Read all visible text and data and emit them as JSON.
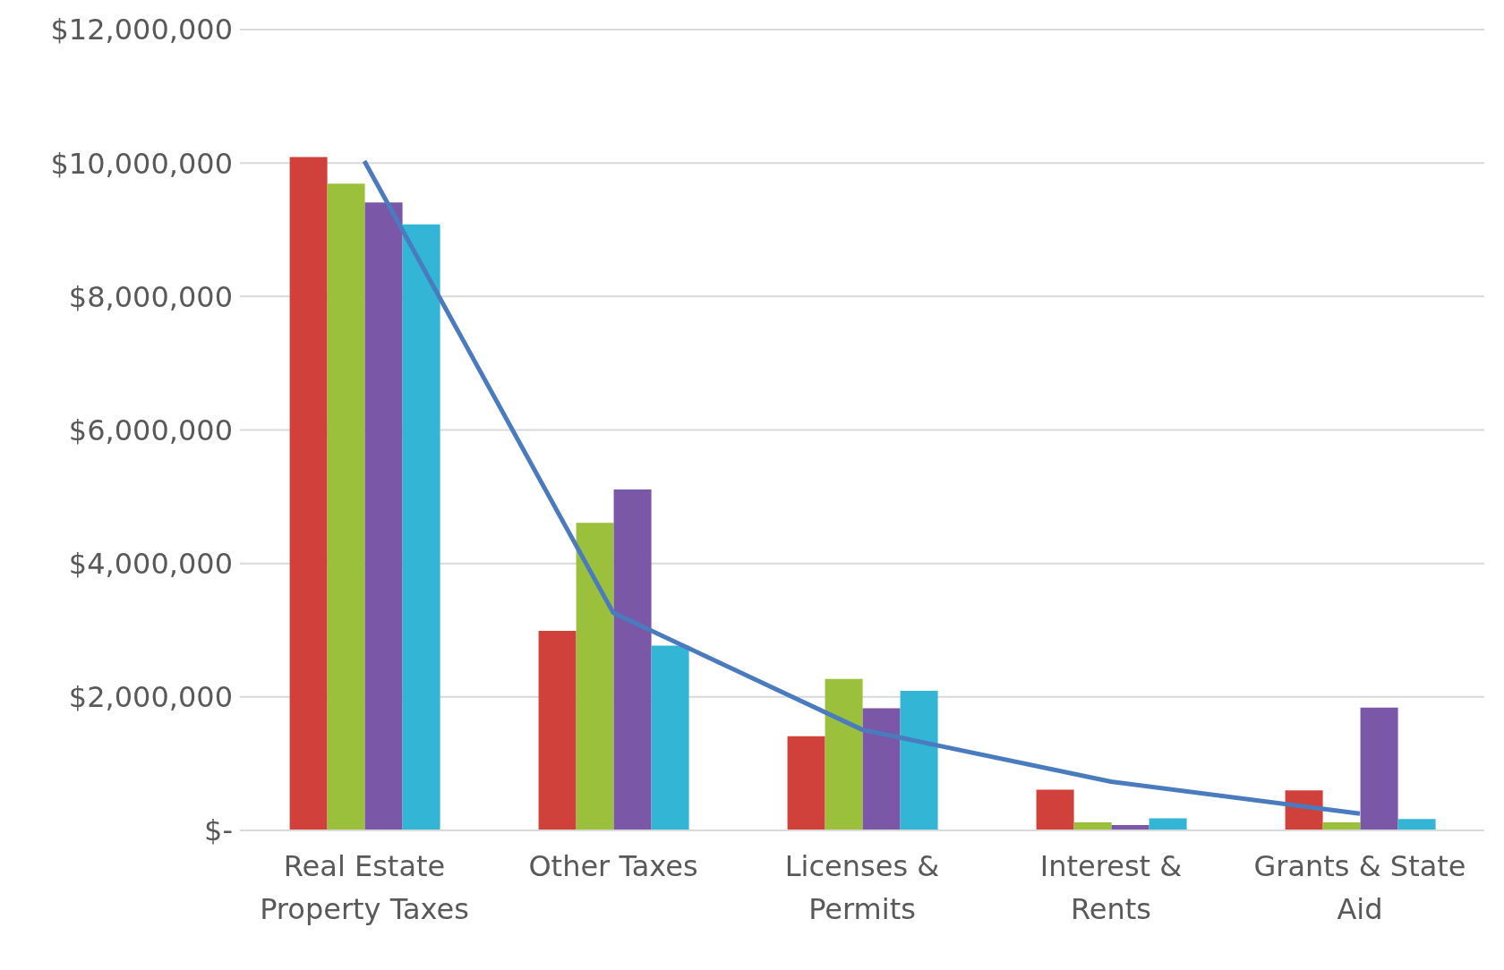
{
  "chart_data": {
    "type": "bar",
    "categories": [
      "Real Estate Property Taxes",
      "Other Taxes",
      "Licenses & Permits",
      "Interest & Rents",
      "Grants & State Aid"
    ],
    "series": [
      {
        "color": "#d0413b",
        "values": [
          10090000,
          2990000,
          1410000,
          610000,
          600000
        ]
      },
      {
        "color": "#9bc13c",
        "values": [
          9690000,
          4610000,
          2270000,
          120000,
          120000
        ]
      },
      {
        "color": "#7b57a8",
        "values": [
          9410000,
          5110000,
          1830000,
          80000,
          1840000
        ]
      },
      {
        "color": "#33b5d6",
        "values": [
          9080000,
          2770000,
          2090000,
          180000,
          170000
        ]
      },
      {
        "type": "line",
        "color": "#4a7bbf",
        "values": [
          10030000,
          3260000,
          1510000,
          730000,
          250000
        ]
      }
    ],
    "ylim": [
      0,
      12000000
    ],
    "yticks": [
      {
        "value": 0,
        "label": "$-"
      },
      {
        "value": 2000000,
        "label": "$2,000,000"
      },
      {
        "value": 4000000,
        "label": "$4,000,000"
      },
      {
        "value": 6000000,
        "label": "$6,000,000"
      },
      {
        "value": 8000000,
        "label": "$8,000,000"
      },
      {
        "value": 10000000,
        "label": "$10,000,000"
      },
      {
        "value": 12000000,
        "label": "$12,000,000"
      }
    ],
    "grid": "y",
    "legend": false,
    "marker": "none",
    "line_style": "solid"
  }
}
